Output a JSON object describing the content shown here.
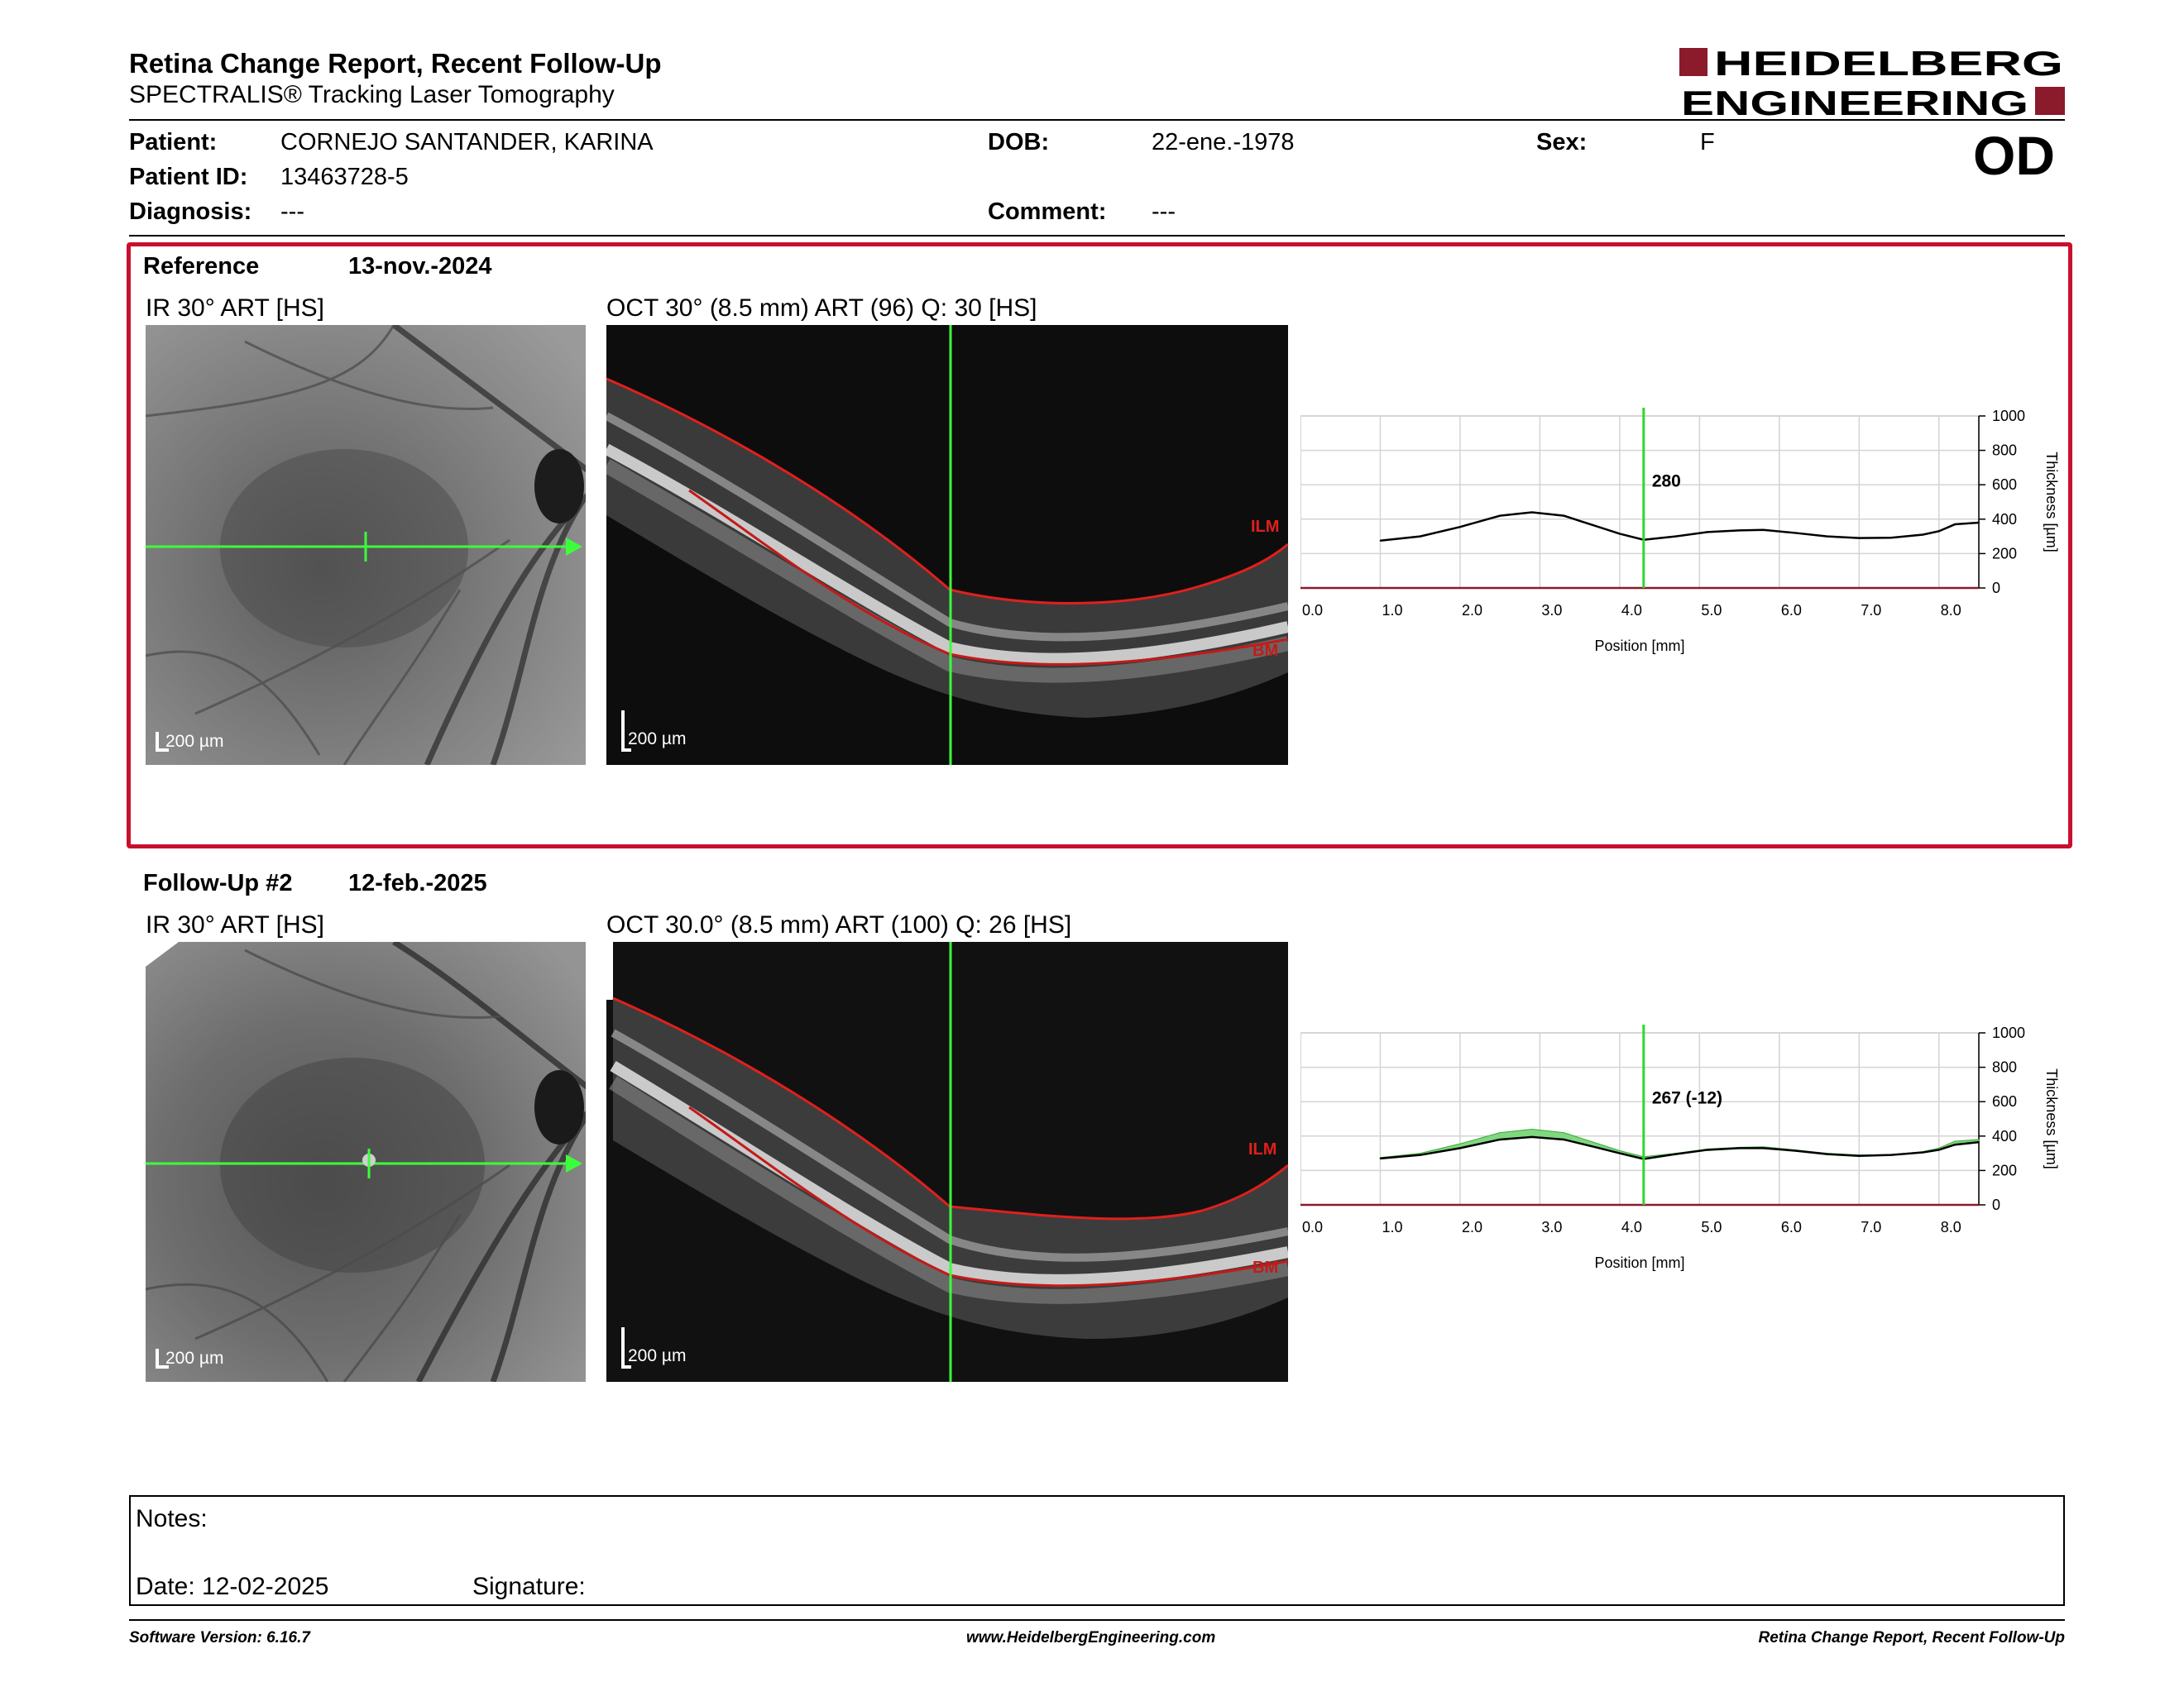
{
  "header": {
    "title": "Retina Change Report, Recent Follow-Up",
    "subtitle": "SPECTRALIS® Tracking Laser Tomography",
    "logo_line1": "HEIDELBERG",
    "logo_line2": "ENGINEERING",
    "brand_color": "#8b1a2b"
  },
  "patient": {
    "patient_label": "Patient:",
    "patient_value": "CORNEJO SANTANDER, KARINA",
    "id_label": "Patient ID:",
    "id_value": "13463728-5",
    "diagnosis_label": "Diagnosis:",
    "diagnosis_value": "---",
    "dob_label": "DOB:",
    "dob_value": "22-ene.-1978",
    "comment_label": "Comment:",
    "comment_value": "---",
    "sex_label": "Sex:",
    "sex_value": "F",
    "eye": "OD"
  },
  "reference": {
    "label": "Reference",
    "date": "13-nov.-2024",
    "ir_caption": "IR 30° ART [HS]",
    "oct_caption": "OCT 30° (8.5 mm) ART (96) Q: 30 [HS]",
    "ir_scale": "200 µm",
    "oct_scale": "200 µm",
    "ilm_label": "ILM",
    "bm_label": "BM",
    "marker_value": "280"
  },
  "followup": {
    "label": "Follow-Up #2",
    "date": "12-feb.-2025",
    "ir_caption": "IR 30° ART [HS]",
    "oct_caption": "OCT 30.0° (8.5 mm) ART (100) Q: 26 [HS]",
    "ir_scale": "200 µm",
    "oct_scale": "200 µm",
    "ilm_label": "ILM",
    "bm_label": "BM",
    "marker_value": "267 (-12)"
  },
  "chart_data": [
    {
      "type": "line",
      "xlabel": "Position [mm]",
      "ylabel": "Thickness [µm]",
      "xlim": [
        0,
        8.5
      ],
      "ylim": [
        0,
        1000
      ],
      "x_ticks": [
        "0.0",
        "1.0",
        "2.0",
        "3.0",
        "4.0",
        "5.0",
        "6.0",
        "7.0",
        "8.0"
      ],
      "y_ticks": [
        "0",
        "200",
        "400",
        "600",
        "800",
        "1000"
      ],
      "grid": true,
      "marker_x": 4.3,
      "marker_label": "280",
      "series": [
        {
          "x": [
            1.0,
            1.5,
            2.0,
            2.5,
            2.9,
            3.3,
            3.7,
            4.0,
            4.3,
            4.7,
            5.1,
            5.5,
            5.8,
            6.2,
            6.6,
            7.0,
            7.4,
            7.8,
            8.0,
            8.2,
            8.5
          ],
          "values": [
            275,
            300,
            355,
            420,
            440,
            420,
            360,
            315,
            280,
            300,
            325,
            335,
            338,
            320,
            300,
            290,
            292,
            310,
            330,
            370,
            380
          ]
        }
      ]
    },
    {
      "type": "line",
      "xlabel": "Position [mm]",
      "ylabel": "Thickness [µm]",
      "xlim": [
        0,
        8.5
      ],
      "ylim": [
        0,
        1000
      ],
      "x_ticks": [
        "0.0",
        "1.0",
        "2.0",
        "3.0",
        "4.0",
        "5.0",
        "6.0",
        "7.0",
        "8.0"
      ],
      "y_ticks": [
        "0",
        "200",
        "400",
        "600",
        "800",
        "1000"
      ],
      "grid": true,
      "marker_x": 4.3,
      "marker_label": "267 (-12)",
      "series": [
        {
          "x": [
            1.0,
            1.5,
            2.0,
            2.5,
            2.9,
            3.3,
            3.7,
            4.0,
            4.3,
            4.7,
            5.1,
            5.5,
            5.8,
            6.2,
            6.6,
            7.0,
            7.4,
            7.8,
            8.0,
            8.2,
            8.5
          ],
          "values": [
            270,
            290,
            330,
            380,
            395,
            380,
            335,
            300,
            267,
            295,
            320,
            330,
            330,
            315,
            295,
            285,
            290,
            305,
            320,
            350,
            365
          ]
        },
        {
          "x": [
            1.0,
            1.5,
            2.0,
            2.5,
            2.9,
            3.3,
            3.7,
            4.0,
            4.3,
            4.7,
            5.1,
            5.5,
            5.8,
            6.2,
            6.6,
            7.0,
            7.4,
            7.8,
            8.0,
            8.2,
            8.5
          ],
          "values": [
            275,
            300,
            355,
            420,
            440,
            420,
            360,
            315,
            280,
            300,
            325,
            335,
            338,
            320,
            300,
            290,
            292,
            310,
            330,
            370,
            380
          ]
        }
      ]
    }
  ],
  "notes": {
    "notes_label": "Notes:",
    "date_label": "Date: 12-02-2025",
    "signature_label": "Signature:"
  },
  "footer": {
    "version": "Software Version: 6.16.7",
    "website": "www.HeidelbergEngineering.com",
    "report_name": "Retina Change Report, Recent Follow-Up"
  }
}
